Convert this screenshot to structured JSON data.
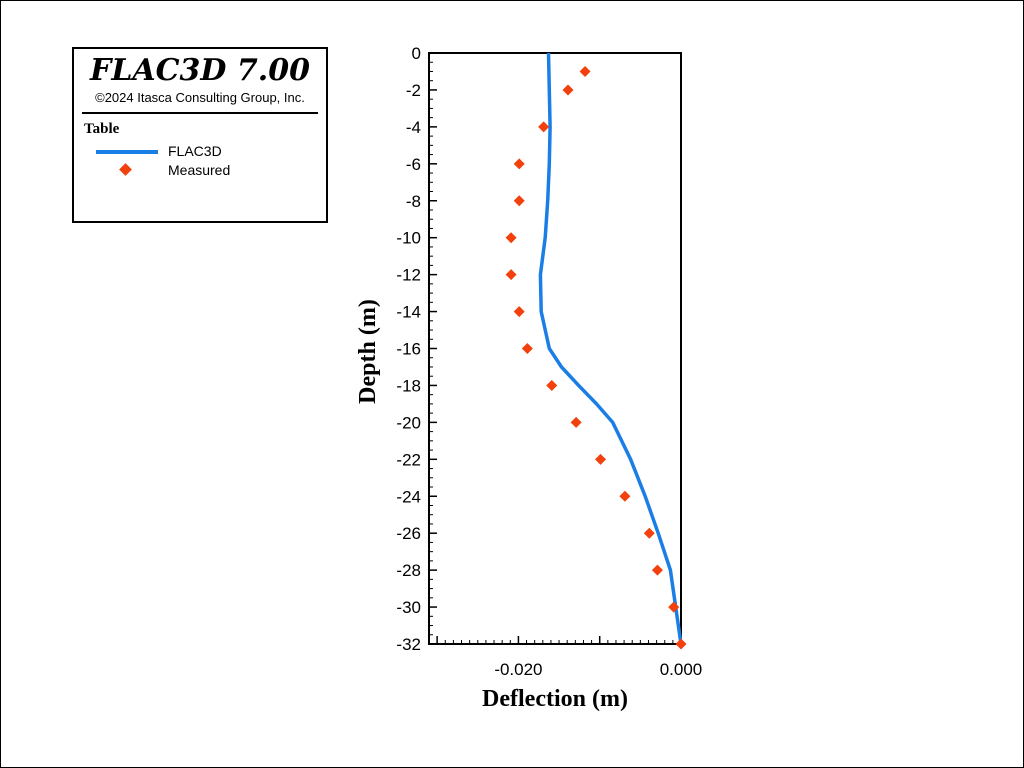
{
  "legend": {
    "title": "FLAC3D 7.00",
    "copyright": "©2024 Itasca Consulting Group, Inc.",
    "table_label": "Table",
    "series": [
      "FLAC3D",
      "Measured"
    ]
  },
  "colors": {
    "flac3d": "#1a7ee6",
    "measured": "#f2410c"
  },
  "chart_data": {
    "type": "line",
    "xlabel": "Deflection (m)",
    "ylabel": "Depth (m)",
    "xlim": [
      -0.031,
      0.0
    ],
    "ylim": [
      -32,
      0
    ],
    "xticks": [
      -0.02,
      0.0
    ],
    "xtick_labels": [
      "-0.020",
      "0.000"
    ],
    "yticks": [
      0,
      -2,
      -4,
      -6,
      -8,
      -10,
      -12,
      -14,
      -16,
      -18,
      -20,
      -22,
      -24,
      -26,
      -28,
      -30,
      -32
    ],
    "grid": false,
    "legend_position": "top-left, outside plot",
    "series": [
      {
        "name": "FLAC3D",
        "type": "line",
        "x": [
          -0.0163,
          -0.0162,
          -0.0161,
          -0.0162,
          -0.0164,
          -0.0167,
          -0.0173,
          -0.0172,
          -0.0162,
          -0.0147,
          -0.0126,
          -0.0104,
          -0.0084,
          -0.0062,
          -0.0044,
          -0.0028,
          -0.0013,
          0.0
        ],
        "y": [
          0,
          -2,
          -4,
          -6,
          -8,
          -10,
          -12,
          -14,
          -16,
          -17,
          -18,
          -19,
          -20,
          -22,
          -24,
          -26,
          -28,
          -32
        ]
      },
      {
        "name": "Measured",
        "type": "scatter",
        "x": [
          -0.0118,
          -0.0139,
          -0.0169,
          -0.0199,
          -0.0199,
          -0.0209,
          -0.0209,
          -0.0199,
          -0.0189,
          -0.0159,
          -0.0129,
          -0.0099,
          -0.0069,
          -0.0039,
          -0.0029,
          -0.0009,
          0.0
        ],
        "y": [
          -1,
          -2,
          -4,
          -6,
          -8,
          -10,
          -12,
          -14,
          -16,
          -18,
          -20,
          -22,
          -24,
          -26,
          -28,
          -30,
          -32
        ]
      }
    ]
  }
}
